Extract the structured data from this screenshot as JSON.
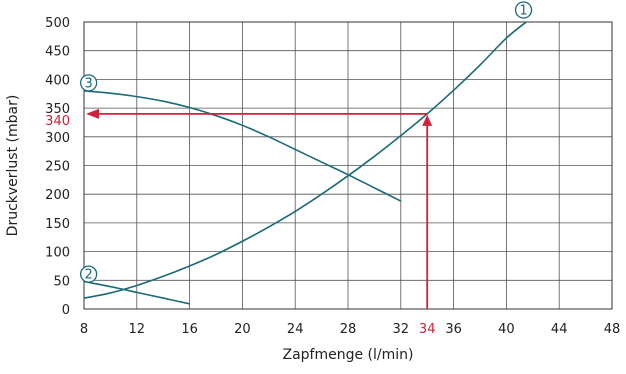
{
  "chart_data": {
    "type": "line",
    "xlabel": "Zapfmenge (l/min)",
    "ylabel": "Druckverlust (mbar)",
    "xlim": [
      8,
      48
    ],
    "ylim": [
      0,
      500
    ],
    "x_ticks": [
      "8",
      "12",
      "16",
      "20",
      "24",
      "28",
      "32",
      "36",
      "40",
      "44",
      "48"
    ],
    "y_ticks": [
      "0",
      "50",
      "100",
      "150",
      "200",
      "250",
      "300",
      "350",
      "400",
      "450",
      "500"
    ],
    "grid": true,
    "series": [
      {
        "name": "1",
        "color": "#1a6a78",
        "x": [
          8,
          10,
          12,
          14,
          16,
          18,
          20,
          22,
          24,
          26,
          28,
          30,
          32,
          34,
          36,
          38,
          40,
          41.5
        ],
        "y": [
          19,
          28,
          41,
          57,
          75,
          95,
          118,
          143,
          170,
          200,
          232,
          266,
          302,
          340,
          381,
          425,
          472,
          500
        ]
      },
      {
        "name": "2",
        "color": "#1a6a78",
        "x": [
          8,
          10,
          12,
          14,
          16
        ],
        "y": [
          48,
          39,
          29,
          19,
          9
        ]
      },
      {
        "name": "3",
        "color": "#1a6a78",
        "x": [
          8,
          10,
          12,
          14,
          16,
          18,
          20,
          22,
          24,
          26,
          28,
          30,
          32
        ],
        "y": [
          380,
          376,
          370,
          362,
          351,
          337,
          320,
          300,
          278,
          256,
          234,
          211,
          188
        ]
      }
    ],
    "annotation": {
      "color": "#d0203a",
      "x_value": 34,
      "y_value": 340,
      "x_label": "34",
      "y_label": "340"
    }
  }
}
